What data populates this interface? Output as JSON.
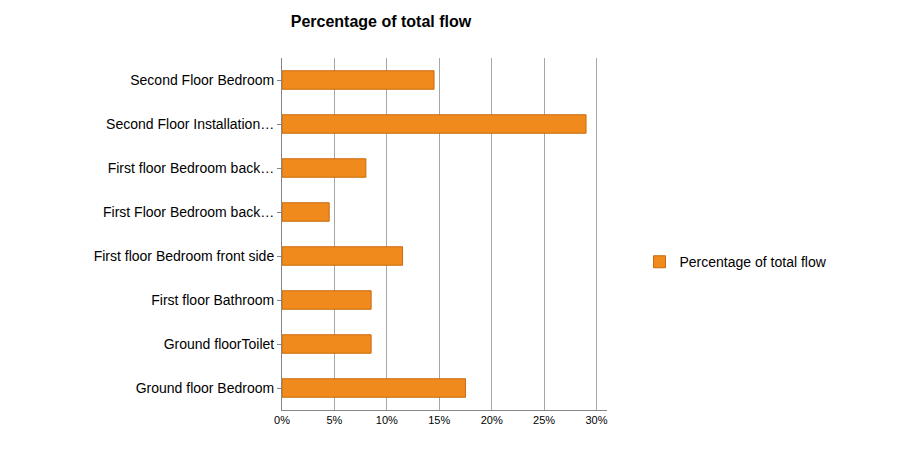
{
  "chart_data": {
    "type": "bar",
    "orientation": "horizontal",
    "title": "Percentage of total flow",
    "categories": [
      "Second Floor Bedroom",
      "Second Floor Installation…",
      "First floor Bedroom back…",
      "First Floor Bedroom back…",
      "First floor Bedroom front side",
      "First floor Bathroom",
      "Ground floorToilet",
      "Ground floor Bedroom"
    ],
    "series": [
      {
        "name": "Percentage of total flow",
        "color": "#f08a1c",
        "values": [
          14.5,
          29,
          8,
          4.5,
          11.5,
          8.5,
          8.5,
          17.5
        ]
      }
    ],
    "xlim": [
      0,
      31
    ],
    "xticks": [
      {
        "value": 0,
        "label": "0%"
      },
      {
        "value": 5,
        "label": "5%"
      },
      {
        "value": 10,
        "label": "10%"
      },
      {
        "value": 15,
        "label": "15%"
      },
      {
        "value": 20,
        "label": "20%"
      },
      {
        "value": 25,
        "label": "25%"
      },
      {
        "value": 30,
        "label": "30%"
      }
    ],
    "grid": true,
    "legend": "right"
  }
}
